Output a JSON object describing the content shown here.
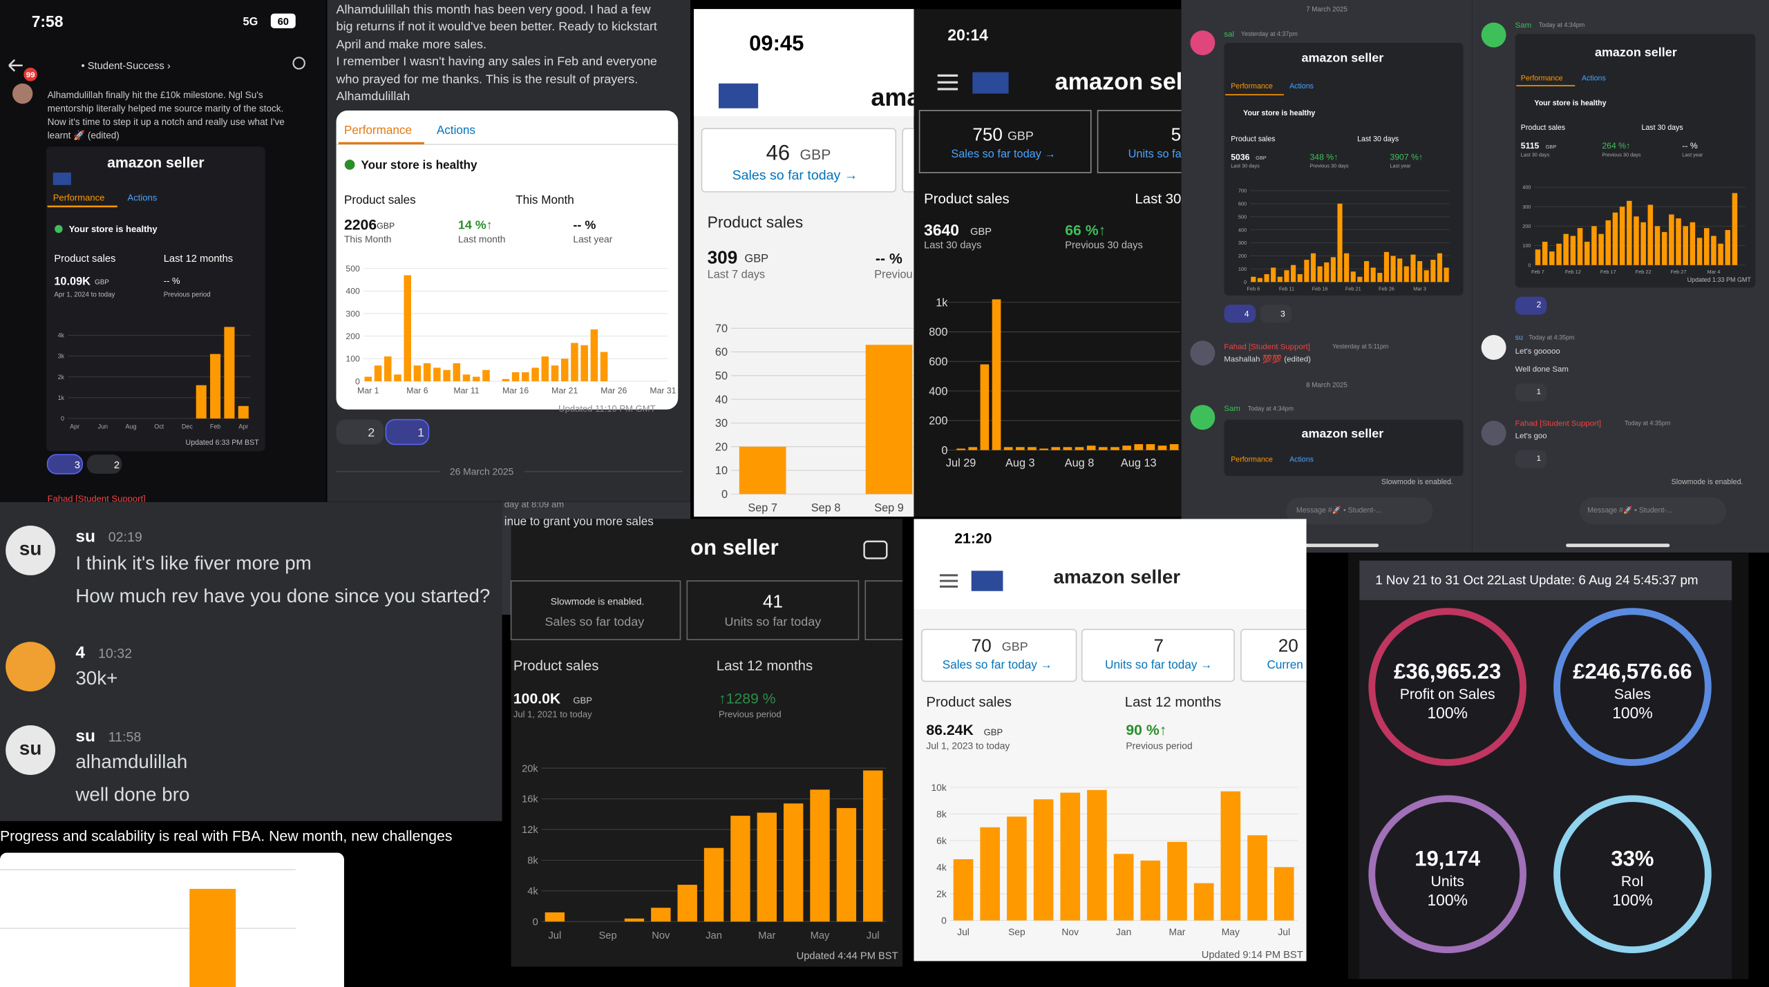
{
  "p1": {
    "time": "7:58",
    "network": "5G",
    "battery": "60",
    "badge": "99",
    "channel": "• Student-Success ›",
    "message": [
      "Alhamdulillah finally hit the £10k milestone. Ngl Su's",
      "mentorship literally helped me source marity of the stock.",
      "Now it's time to step it up a notch and really use what I've",
      "learnt 🚀 (edited)"
    ],
    "card": {
      "brand": "amazon seller",
      "tabs": [
        "Performance",
        "Actions"
      ],
      "health": "Your store is healthy",
      "metric": "Product sales",
      "period": "Last 12 months",
      "total": "10.09K",
      "currency": "GBP",
      "range": "Apr 1, 2024 to today",
      "change": "-- %",
      "change_label": "Previous period",
      "chart": {
        "categories": [
          "Apr",
          null,
          "Jun",
          null,
          "Aug",
          null,
          "Oct",
          null,
          "Dec",
          null,
          "Feb",
          null,
          "Apr"
        ],
        "values": [
          0,
          0,
          0,
          0,
          0,
          0,
          0,
          0,
          0,
          1600,
          3100,
          4400,
          600
        ],
        "color": "#ff9900",
        "ylim": [
          0,
          4500
        ],
        "yticks": [
          0,
          {
            "value": 1000,
            "label": "1k"
          },
          {
            "value": 2000,
            "label": "2k"
          },
          {
            "value": 3000,
            "label": "3k"
          },
          {
            "value": 4000,
            "label": "4k"
          }
        ]
      },
      "updated": "Updated 6:33 PM BST"
    },
    "reactions": [
      "3",
      "2"
    ],
    "next_author": "Fahad [Student Support]"
  },
  "p2": {
    "message": [
      "Alhamdulillah this month has been very good. I had a few",
      "big returns if not it would've been better. Ready to kickstart",
      "April and make more sales.",
      "I remember I wasn't having any sales in Feb and everyone",
      "who prayed for me thanks. This is the result of prayers.",
      "Alhamdulillah"
    ],
    "card": {
      "tabs": [
        "Performance",
        "Actions"
      ],
      "health": "Your store is healthy",
      "metric": "Product sales",
      "period": "This Month",
      "total": "2206",
      "currency": "GBP",
      "total_label": "This Month",
      "change": "14 %↑",
      "change_label": "Last month",
      "yoy": "-- %",
      "yoy_label": "Last year",
      "chart": {
        "categories": [
          "Mar 1",
          null,
          null,
          null,
          null,
          "Mar 6",
          null,
          null,
          null,
          null,
          "Mar 11",
          null,
          null,
          null,
          null,
          "Mar 16",
          null,
          null,
          null,
          null,
          "Mar 21",
          null,
          null,
          null,
          null,
          "Mar 26",
          null,
          null,
          null,
          null,
          "Mar 31"
        ],
        "values": [
          20,
          70,
          110,
          30,
          470,
          70,
          80,
          60,
          50,
          80,
          30,
          20,
          50,
          0,
          10,
          40,
          40,
          60,
          110,
          70,
          100,
          170,
          160,
          230,
          130,
          0,
          0,
          0,
          0,
          0,
          0
        ],
        "color": "#ff9900",
        "ylim": [
          0,
          500
        ],
        "yticks": [
          0,
          100,
          200,
          300,
          400,
          500
        ]
      },
      "updated": "Updated 11:10 PM GMT"
    },
    "reactions": [
      "2",
      "1"
    ],
    "date": "26 March 2025"
  },
  "p3": {
    "time": "09:45",
    "brand": "ama",
    "today_sales": "46",
    "currency": "GBP",
    "today_label": "Sales so far today →",
    "metric": "Product sales",
    "total": "309",
    "total_currency": "GBP",
    "range": "Last 7 days",
    "change": "-- %",
    "change_label": "Previou",
    "chart": {
      "categories": [
        "Sep 7",
        "Sep 8",
        "Sep 9"
      ],
      "values": [
        20,
        0,
        63
      ],
      "color": "#ff9900",
      "ylim": [
        0,
        70
      ],
      "yticks": [
        0,
        10,
        20,
        30,
        40,
        50,
        60,
        70
      ]
    }
  },
  "p4": {
    "time": "20:14",
    "brand": "amazon selle",
    "tile1_value": "750",
    "tile1_currency": "GBP",
    "tile1_label": "Sales so far today →",
    "tile2_value": "5",
    "tile2_label": "Units so fa",
    "metric": "Product sales",
    "period": "Last 30",
    "total": "3640",
    "currency": "GBP",
    "range": "Last 30 days",
    "change": "66 %↑",
    "change_label": "Previous 30 days",
    "chart": {
      "categories": [
        null,
        "Jul 29",
        null,
        null,
        null,
        null,
        "Aug 3",
        null,
        null,
        null,
        null,
        "Aug 8",
        null,
        null,
        null,
        null,
        "Aug 13",
        null,
        null,
        null
      ],
      "values": [
        0,
        10,
        20,
        580,
        1020,
        20,
        20,
        20,
        10,
        20,
        20,
        20,
        30,
        20,
        20,
        30,
        40,
        40,
        30,
        40
      ],
      "color": "#ff9900",
      "ylim": [
        0,
        1000
      ],
      "yticks": [
        0,
        200,
        400,
        600,
        800,
        {
          "value": 1000,
          "label": "1k"
        }
      ]
    }
  },
  "p5": {
    "date1": "7 March 2025",
    "author": "sal",
    "time": "Yesterday at 4:37pm",
    "card": {
      "brand": "amazon seller",
      "tabs": [
        "Performance",
        "Actions"
      ],
      "health": "Your store is healthy",
      "metric": "Product sales",
      "period": "Last 30 days",
      "total": "5036",
      "currency": "GBP",
      "range": "Last 30 days",
      "change1": "348 %↑",
      "change1_label": "Previous 30 days",
      "change2": "3907 %↑",
      "change2_label": "Last year",
      "chart": {
        "categories": [
          "Feb 6",
          null,
          null,
          null,
          null,
          "Feb 11",
          null,
          null,
          null,
          null,
          "Feb 16",
          null,
          null,
          null,
          null,
          "Feb 21",
          null,
          null,
          null,
          null,
          "Feb 26",
          null,
          null,
          null,
          null,
          "Mar 3",
          null,
          null,
          null,
          null
        ],
        "values": [
          40,
          30,
          60,
          110,
          40,
          90,
          130,
          60,
          170,
          220,
          120,
          150,
          190,
          600,
          220,
          80,
          40,
          160,
          110,
          70,
          230,
          200,
          180,
          120,
          210,
          160,
          90,
          170,
          220,
          110
        ],
        "color": "#ff9900",
        "ylim": [
          0,
          700
        ],
        "yticks": [
          0,
          100,
          200,
          300,
          400,
          500,
          600,
          700
        ]
      }
    },
    "reactions": [
      "4",
      "3"
    ],
    "author2": "Fahad [Student Support]",
    "time2": "Yesterday at 5:11pm",
    "message2": "Mashallah 💯💯 (edited)",
    "date2": "8 March 2025",
    "author3": "Sam",
    "time3": "Today at 4:34pm",
    "card2": {
      "brand": "amazon seller",
      "tabs": [
        "Performance",
        "Actions"
      ]
    },
    "slowmode": "Slowmode is enabled.",
    "input": "Message #🚀 • Student-..."
  },
  "p6": {
    "author": "Sam",
    "time": "Today at 4:34pm",
    "card": {
      "brand": "amazon seller",
      "tabs": [
        "Performance",
        "Actions"
      ],
      "health": "Your store is healthy",
      "metric": "Product sales",
      "period": "Last 30 days",
      "total": "5115",
      "currency": "GBP",
      "range": "Last 30 days",
      "change1": "264 %↑",
      "change1_label": "Previous 30 days",
      "change2": "-- %",
      "change2_label": "Last year",
      "chart": {
        "categories": [
          "Feb 7",
          null,
          null,
          null,
          null,
          "Feb 12",
          null,
          null,
          null,
          null,
          "Feb 17",
          null,
          null,
          null,
          null,
          "Feb 22",
          null,
          null,
          null,
          null,
          "Feb 27",
          null,
          null,
          null,
          null,
          "Mar 4",
          null,
          null,
          null,
          null
        ],
        "values": [
          80,
          120,
          70,
          110,
          160,
          150,
          190,
          120,
          200,
          160,
          230,
          270,
          300,
          330,
          250,
          220,
          310,
          200,
          170,
          260,
          240,
          200,
          220,
          140,
          190,
          150,
          110,
          180,
          370,
          0
        ],
        "color": "#ff9900",
        "ylim": [
          0,
          400
        ],
        "yticks": [
          0,
          100,
          200,
          300,
          400
        ]
      },
      "updated": "Updated 1:33 PM GMT"
    },
    "reactions1": "2",
    "author2": "su",
    "time2": "Today at 4:35pm",
    "messages2": [
      "Let's gooooo",
      "Well done Sam"
    ],
    "reactions2": "1",
    "author3": "Fahad [Student Support]",
    "time3": "Today at 4:35pm",
    "message3": "Let's goo",
    "reactions3": "1",
    "slowmode": "Slowmode is enabled.",
    "input": "Message #🚀 • Student-..."
  },
  "p7": {
    "messages": [
      {
        "avatar": "su",
        "author": "su",
        "time": "02:19",
        "lines": [
          "I think it's like fiver more pm",
          "How much rev have you done since you started?"
        ]
      },
      {
        "author": "4",
        "time": "10:32",
        "lines": [
          "30k+"
        ]
      },
      {
        "avatar": "su",
        "author": "su",
        "time": "11:58",
        "lines": [
          "alhamdulillah",
          "well done bro"
        ]
      }
    ]
  },
  "p8": {
    "caption": "Progress and scalability is real with FBA. New month, new challenges"
  },
  "p9": {
    "top_time": "day at 8:09 am",
    "top_text": "inue to grant you more sales",
    "slowmode": "Slowmode is enabled.",
    "brand": "on seller",
    "tile1_label": "Sales so far today",
    "tile2_value": "41",
    "tile2_label": "Units so far today",
    "metric": "Product sales",
    "period": "Last 12 months",
    "total": "100.0K",
    "currency": "GBP",
    "range": "Jul 1, 2021 to today",
    "change": "↑1289 %",
    "change_label": "Previous period",
    "chart": {
      "categories": [
        "Jul",
        null,
        "Sep",
        null,
        "Nov",
        null,
        "Jan",
        null,
        "Mar",
        null,
        "May",
        null,
        "Jul"
      ],
      "values": [
        1200,
        0,
        0,
        400,
        1800,
        4800,
        9600,
        13800,
        14200,
        15400,
        17200,
        14800,
        19700
      ],
      "color": "#ff9900",
      "ylim": [
        0,
        20000
      ],
      "yticks": [
        0,
        {
          "value": 4000,
          "label": "4k"
        },
        {
          "value": 8000,
          "label": "8k"
        },
        {
          "value": 12000,
          "label": "12k"
        },
        {
          "value": 16000,
          "label": "16k"
        },
        {
          "value": 20000,
          "label": "20k"
        }
      ]
    },
    "updated": "Updated 4:44 PM BST"
  },
  "p10": {
    "time": "21:20",
    "brand": "amazon seller",
    "tile1_value": "70",
    "tile1_currency": "GBP",
    "tile1_label": "Sales so far today →",
    "tile2_value": "7",
    "tile2_label": "Units so far today →",
    "tile3_value": "20",
    "tile3_label": "Curren",
    "metric": "Product sales",
    "period": "Last 12 months",
    "total": "86.24K",
    "currency": "GBP",
    "range": "Jul 1, 2023 to today",
    "change": "90 %↑",
    "change_label": "Previous period",
    "chart": {
      "categories": [
        "Jul",
        null,
        "Sep",
        null,
        "Nov",
        null,
        "Jan",
        null,
        "Mar",
        null,
        "May",
        null,
        "Jul"
      ],
      "values": [
        4600,
        7000,
        7800,
        9100,
        9600,
        9800,
        5000,
        4500,
        5900,
        2800,
        9700,
        6400,
        4000
      ],
      "color": "#ff9900",
      "ylim": [
        0,
        10000
      ],
      "yticks": [
        0,
        {
          "value": 2000,
          "label": "2k"
        },
        {
          "value": 4000,
          "label": "4k"
        },
        {
          "value": 6000,
          "label": "6k"
        },
        {
          "value": 8000,
          "label": "8k"
        },
        {
          "value": 10000,
          "label": "10k"
        }
      ]
    },
    "updated": "Updated 9:14 PM BST"
  },
  "p11": {
    "header": "1 Nov 21 to 31 Oct 22Last Update: 6 Aug 24 5:45:37 pm",
    "rings": [
      {
        "value": "£36,965.23",
        "label": "Profit on Sales",
        "percent": "100%"
      },
      {
        "value": "£246,576.66",
        "label": "Sales",
        "percent": "100%"
      },
      {
        "value": "19,174",
        "label": "Units",
        "percent": "100%"
      },
      {
        "value": "33%",
        "label": "RoI",
        "percent": "100%"
      }
    ]
  }
}
